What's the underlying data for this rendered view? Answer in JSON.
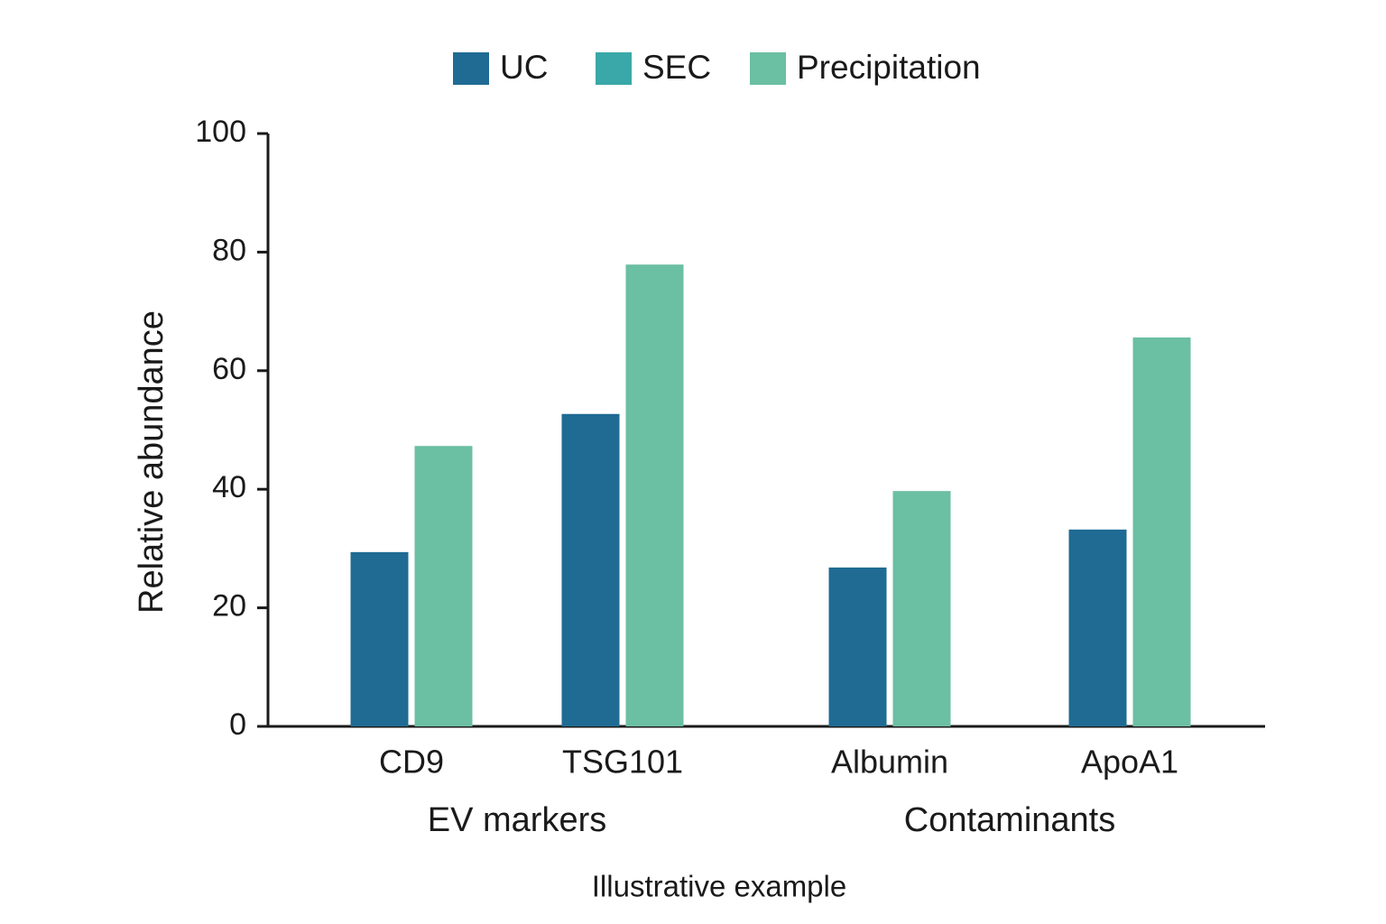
{
  "chart_data": {
    "type": "bar",
    "ylabel": "Relative abundance",
    "note": "Illustrative example",
    "groups": [
      {
        "label": "EV markers",
        "categories": [
          "CD9",
          "TSG101"
        ]
      },
      {
        "label": "Contaminants",
        "categories": [
          "Albumin",
          "ApoA1"
        ]
      }
    ],
    "series": [
      {
        "name": "UC",
        "color": "#1f6b93",
        "values": [
          29.4,
          52.7,
          26.8,
          33.2
        ]
      },
      {
        "name": "SEC",
        "color": "#3aa8a8",
        "values": [
          null,
          null,
          null,
          null
        ]
      },
      {
        "name": "Precipitation",
        "color": "#6bbfa2",
        "values": [
          47.3,
          77.9,
          39.7,
          65.6
        ]
      }
    ],
    "ylim": [
      0,
      100
    ],
    "yticks": [
      0,
      20,
      40,
      60,
      80,
      100
    ],
    "grid": false,
    "legend": "top"
  }
}
